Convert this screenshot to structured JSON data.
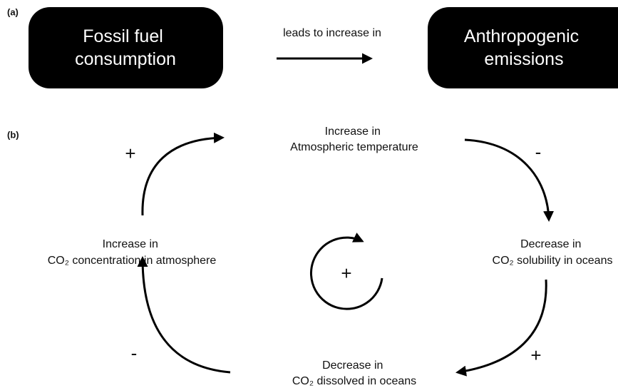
{
  "panel_a": {
    "label": "(a)",
    "source": {
      "lines": [
        "Fossil fuel",
        "consumption"
      ]
    },
    "edge_label": "leads to increase in",
    "target": {
      "lines": [
        "Anthropogenic",
        "emissions"
      ]
    }
  },
  "panel_b": {
    "label": "(b)",
    "nodes": [
      {
        "lines": [
          "Increase in",
          "Atmospheric temperature"
        ]
      },
      {
        "lines": [
          "Decrease in",
          "CO₂ solubility in oceans"
        ]
      },
      {
        "lines": [
          "Decrease in",
          "CO₂ dissolved in oceans"
        ]
      },
      {
        "lines": [
          "Increase in",
          "CO₂ concentration in atmosphere"
        ]
      }
    ],
    "signs": [
      "-",
      "+",
      "-",
      "+"
    ],
    "loop_sign": "+"
  }
}
